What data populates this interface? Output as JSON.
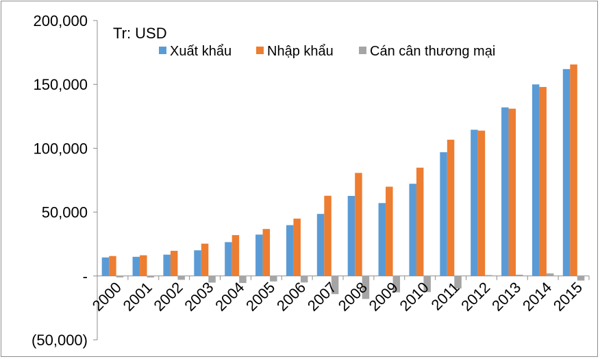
{
  "chart_data": {
    "type": "bar",
    "title": "",
    "unit_label": "Tr: USD",
    "xlabel": "",
    "ylabel": "",
    "ylim": [
      -50000,
      200000
    ],
    "y_ticks": [
      200000,
      150000,
      100000,
      50000,
      0,
      -50000
    ],
    "y_tick_labels": [
      "200,000",
      "150,000",
      "100,000",
      "50,000",
      "-",
      "(50,000)"
    ],
    "categories": [
      "2000",
      "2001",
      "2002",
      "2003",
      "2004",
      "2005",
      "2006",
      "2007",
      "2008",
      "2009",
      "2010",
      "2011",
      "2012",
      "2013",
      "2014",
      "2015"
    ],
    "legend_position": "top",
    "grid": false,
    "series": [
      {
        "name": "Xuất khẩu",
        "color": "#5B9BD5",
        "values": [
          14500,
          15000,
          16700,
          20100,
          26500,
          32400,
          39800,
          48600,
          62700,
          57100,
          72200,
          96900,
          114500,
          132000,
          150000,
          162000
        ]
      },
      {
        "name": "Nhập khẩu",
        "color": "#ED7D31",
        "values": [
          15600,
          16200,
          19700,
          25300,
          32000,
          36800,
          44900,
          62800,
          80700,
          69900,
          84800,
          106700,
          113800,
          131000,
          148000,
          165600
        ]
      },
      {
        "name": "Cán cân thương mại",
        "color": "#A5A5A5",
        "values": [
          -1100,
          -1200,
          -3000,
          -5200,
          -5500,
          -4300,
          -5100,
          -14200,
          -18000,
          -12800,
          -12600,
          -9800,
          700,
          1000,
          2000,
          -3600
        ]
      }
    ]
  }
}
